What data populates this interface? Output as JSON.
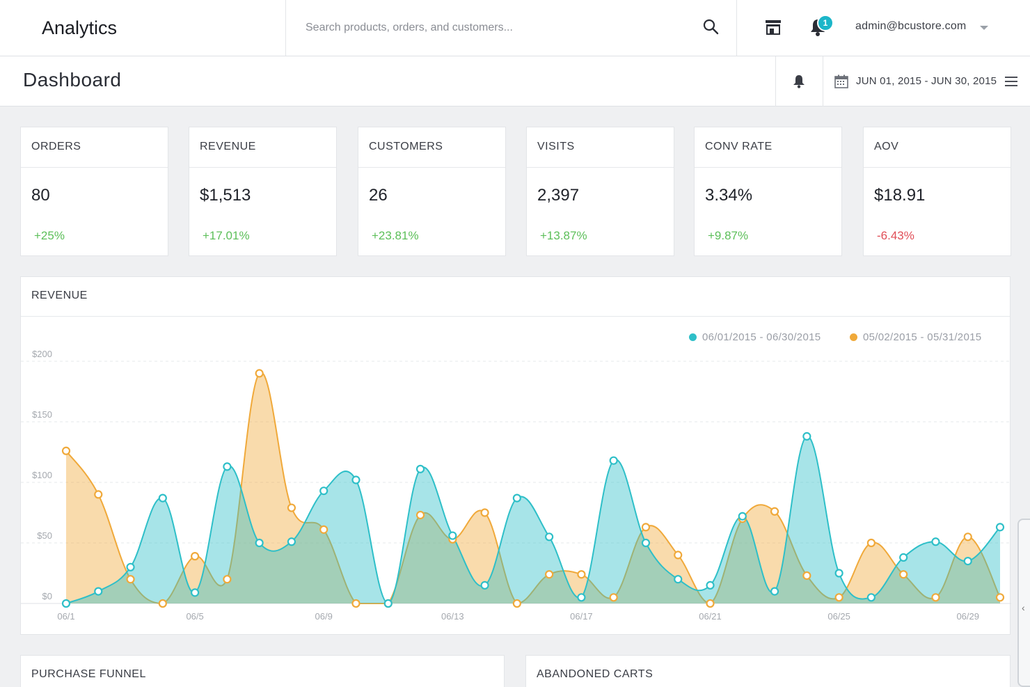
{
  "app": {
    "title": "Analytics"
  },
  "search": {
    "placeholder": "Search products, orders, and customers..."
  },
  "topbar": {
    "notification_count": "1",
    "user_email": "admin@bcustore.com"
  },
  "page": {
    "title": "Dashboard",
    "date_range": "JUN 01, 2015 - JUN 30, 2015"
  },
  "kpis": [
    {
      "label": "ORDERS",
      "value": "80",
      "change": "+25%",
      "trend": "up"
    },
    {
      "label": "REVENUE",
      "value": "$1,513",
      "change": "+17.01%",
      "trend": "up"
    },
    {
      "label": "CUSTOMERS",
      "value": "26",
      "change": "+23.81%",
      "trend": "up"
    },
    {
      "label": "VISITS",
      "value": "2,397",
      "change": "+13.87%",
      "trend": "up"
    },
    {
      "label": "CONV RATE",
      "value": "3.34%",
      "change": "+9.87%",
      "trend": "up"
    },
    {
      "label": "AOV",
      "value": "$18.91",
      "change": "-6.43%",
      "trend": "down"
    }
  ],
  "revenue_panel": {
    "title": "REVENUE"
  },
  "panels": {
    "funnel_title": "PURCHASE FUNNEL",
    "abandoned_title": "ABANDONED CARTS"
  },
  "colors": {
    "teal": "#2ebfc8",
    "orange": "#f0a93a",
    "positive": "#5cbf59",
    "negative": "#e04e57",
    "badge": "#1cb6c9"
  },
  "chart_data": {
    "type": "area",
    "x": [
      "06/1",
      "06/2",
      "06/3",
      "06/4",
      "06/5",
      "06/6",
      "06/7",
      "06/8",
      "06/9",
      "06/10",
      "06/11",
      "06/12",
      "06/13",
      "06/14",
      "06/15",
      "06/16",
      "06/17",
      "06/18",
      "06/19",
      "06/20",
      "06/21",
      "06/22",
      "06/23",
      "06/24",
      "06/25",
      "06/26",
      "06/27",
      "06/28",
      "06/29",
      "06/30"
    ],
    "x_tick_labels": [
      "06/1",
      "06/5",
      "06/9",
      "06/13",
      "06/17",
      "06/21",
      "06/25",
      "06/29"
    ],
    "y_tick_labels": [
      "$0",
      "$50",
      "$100",
      "$150",
      "$200"
    ],
    "ylim": [
      0,
      200
    ],
    "legend_position": "top-right",
    "grid": "horizontal dashed",
    "series": [
      {
        "name": "06/01/2015 - 06/30/2015",
        "color": "#2ebfc8",
        "values": [
          0,
          10,
          30,
          87,
          9,
          113,
          50,
          51,
          93,
          102,
          0,
          111,
          56,
          15,
          87,
          55,
          5,
          118,
          50,
          20,
          15,
          72,
          10,
          138,
          25,
          5,
          38,
          51,
          35,
          63
        ]
      },
      {
        "name": "05/02/2015 - 05/31/2015",
        "color": "#f0a93a",
        "values": [
          126,
          90,
          20,
          0,
          39,
          20,
          190,
          79,
          61,
          0,
          0,
          73,
          53,
          75,
          0,
          24,
          24,
          5,
          63,
          40,
          0,
          70,
          76,
          23,
          5,
          50,
          24,
          5,
          55,
          5
        ]
      }
    ]
  }
}
